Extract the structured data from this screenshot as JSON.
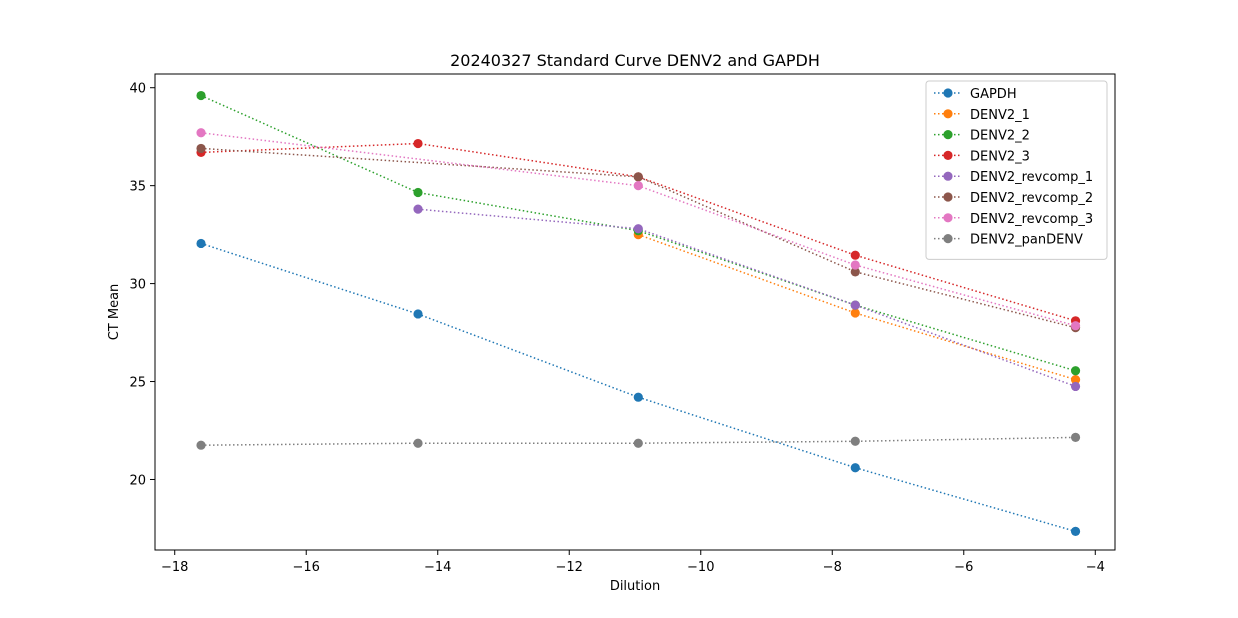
{
  "chart_data": {
    "type": "line",
    "title": "20240327 Standard Curve DENV2 and GAPDH",
    "xlabel": "Dilution",
    "ylabel": "CT Mean",
    "xlim": [
      -18.3,
      -3.7
    ],
    "ylim": [
      16.4,
      40.7
    ],
    "xticks": [
      -18,
      -16,
      -14,
      -12,
      -10,
      -8,
      -6,
      -4
    ],
    "yticks": [
      20,
      25,
      30,
      35,
      40
    ],
    "xtick_labels": [
      "−18",
      "−16",
      "−14",
      "−12",
      "−10",
      "−8",
      "−6",
      "−4"
    ],
    "ytick_labels": [
      "20",
      "25",
      "30",
      "35",
      "40"
    ],
    "grid": false,
    "legend_position": "top-right",
    "line_style": "dotted",
    "marker": "circle",
    "series": [
      {
        "name": "GAPDH",
        "color": "#1f77b4",
        "x": [
          -17.6,
          -14.3,
          -10.95,
          -7.65,
          -4.3
        ],
        "y": [
          32.05,
          28.45,
          24.2,
          20.6,
          17.35
        ]
      },
      {
        "name": "DENV2_1",
        "color": "#ff7f0e",
        "x": [
          -10.95,
          -7.65,
          -4.3
        ],
        "y": [
          32.5,
          28.5,
          25.1
        ]
      },
      {
        "name": "DENV2_2",
        "color": "#2ca02c",
        "x": [
          -17.6,
          -14.3,
          -10.95,
          -7.65,
          -4.3
        ],
        "y": [
          39.6,
          34.65,
          32.7,
          28.9,
          25.55
        ]
      },
      {
        "name": "DENV2_3",
        "color": "#d62728",
        "x": [
          -17.6,
          -14.3,
          -10.95,
          -7.65,
          -4.3
        ],
        "y": [
          36.7,
          37.15,
          35.45,
          31.45,
          28.1
        ]
      },
      {
        "name": "DENV2_revcomp_1",
        "color": "#9467bd",
        "x": [
          -14.3,
          -10.95,
          -7.65,
          -4.3
        ],
        "y": [
          33.8,
          32.8,
          28.9,
          24.75
        ]
      },
      {
        "name": "DENV2_revcomp_2",
        "color": "#8c564b",
        "x": [
          -17.6,
          -10.95,
          -7.65,
          -4.3
        ],
        "y": [
          36.9,
          35.45,
          30.6,
          27.75
        ]
      },
      {
        "name": "DENV2_revcomp_3",
        "color": "#e377c2",
        "x": [
          -17.6,
          -10.95,
          -7.65,
          -4.3
        ],
        "y": [
          37.7,
          35.0,
          30.95,
          27.85
        ]
      },
      {
        "name": "DENV2_panDENV",
        "color": "#7f7f7f",
        "x": [
          -17.6,
          -14.3,
          -10.95,
          -7.65,
          -4.3
        ],
        "y": [
          21.75,
          21.85,
          21.85,
          21.95,
          22.15
        ]
      }
    ]
  }
}
